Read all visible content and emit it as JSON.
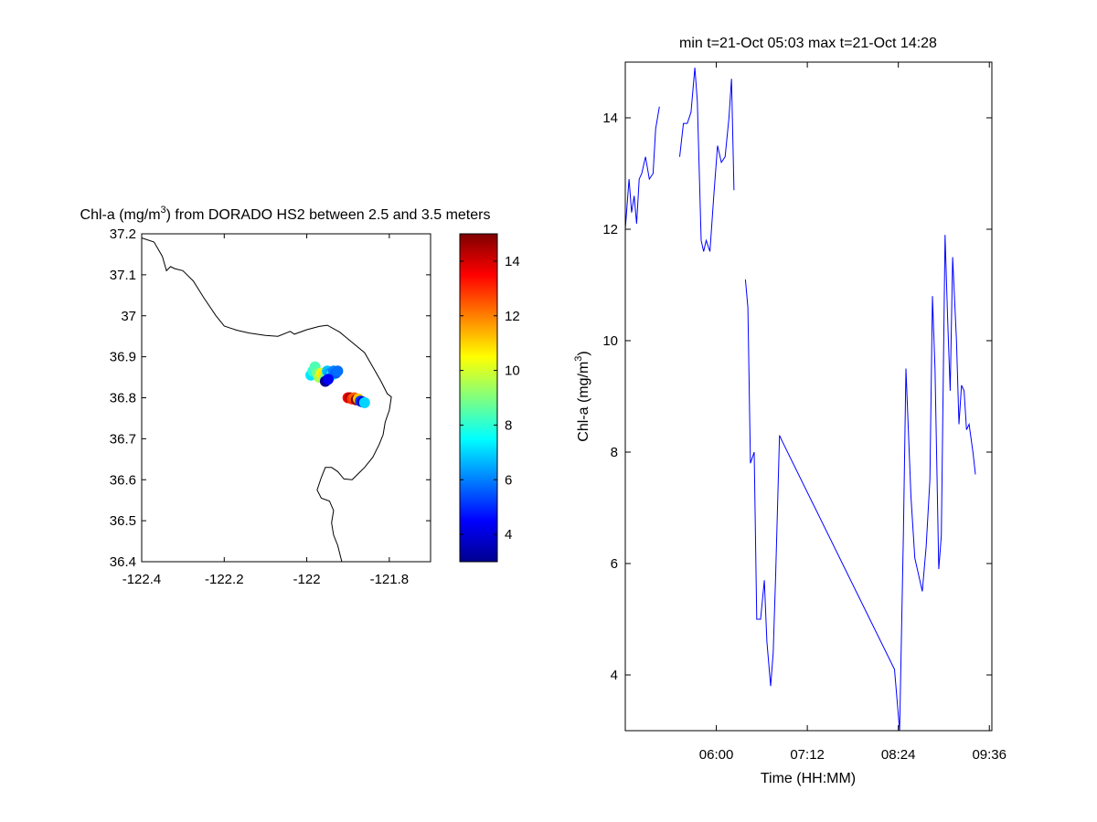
{
  "chart_data": [
    {
      "type": "scatter",
      "title": "Chl-a (mg/m3) from DORADO HS2 between 2.5 and 3.5 meters",
      "title_parts": {
        "pre": "Chl-a (mg/m",
        "sup": "3",
        "post": ") from DORADO HS2 between 2.5 and 3.5 meters"
      },
      "xlabel": "",
      "ylabel": "",
      "xlim": [
        -122.4,
        -121.7
      ],
      "ylim": [
        36.4,
        37.2
      ],
      "x_ticks": [
        -122.4,
        -122.2,
        -122,
        -121.8
      ],
      "x_tick_labels": [
        "-122.4",
        "-122.2",
        "-122",
        "-121.8"
      ],
      "y_ticks": [
        36.4,
        36.5,
        36.6,
        36.7,
        36.8,
        36.9,
        37.0,
        37.1,
        37.2
      ],
      "y_tick_labels": [
        "36.4",
        "36.5",
        "36.6",
        "36.7",
        "36.8",
        "36.9",
        "37",
        "37.1",
        "37.2"
      ],
      "coastline": [
        [
          -122.4,
          37.19
        ],
        [
          -122.37,
          37.18
        ],
        [
          -122.35,
          37.145
        ],
        [
          -122.34,
          37.11
        ],
        [
          -122.33,
          37.12
        ],
        [
          -122.32,
          37.115
        ],
        [
          -122.3,
          37.11
        ],
        [
          -122.275,
          37.085
        ],
        [
          -122.25,
          37.045
        ],
        [
          -122.22,
          37.0
        ],
        [
          -122.2,
          36.975
        ],
        [
          -122.17,
          36.965
        ],
        [
          -122.14,
          36.958
        ],
        [
          -122.1,
          36.952
        ],
        [
          -122.07,
          36.95
        ],
        [
          -122.04,
          36.962
        ],
        [
          -122.03,
          36.955
        ],
        [
          -122.0,
          36.966
        ],
        [
          -121.97,
          36.974
        ],
        [
          -121.95,
          36.977
        ],
        [
          -121.92,
          36.96
        ],
        [
          -121.89,
          36.935
        ],
        [
          -121.86,
          36.91
        ],
        [
          -121.84,
          36.875
        ],
        [
          -121.82,
          36.84
        ],
        [
          -121.805,
          36.81
        ],
        [
          -121.795,
          36.802
        ],
        [
          -121.8,
          36.77
        ],
        [
          -121.81,
          36.74
        ],
        [
          -121.815,
          36.71
        ],
        [
          -121.825,
          36.685
        ],
        [
          -121.84,
          36.655
        ],
        [
          -121.86,
          36.63
        ],
        [
          -121.875,
          36.615
        ],
        [
          -121.89,
          36.6
        ],
        [
          -121.91,
          36.602
        ],
        [
          -121.925,
          36.62
        ],
        [
          -121.94,
          36.63
        ],
        [
          -121.955,
          36.63
        ],
        [
          -121.965,
          36.605
        ],
        [
          -121.975,
          36.575
        ],
        [
          -121.965,
          36.555
        ],
        [
          -121.945,
          36.548
        ],
        [
          -121.935,
          36.525
        ],
        [
          -121.94,
          36.495
        ],
        [
          -121.935,
          36.465
        ],
        [
          -121.925,
          36.44
        ],
        [
          -121.915,
          36.4
        ]
      ],
      "points": [
        {
          "lon": -121.99,
          "lat": 36.855,
          "v": 7.2
        },
        {
          "lon": -121.985,
          "lat": 36.865,
          "v": 8.0
        },
        {
          "lon": -121.98,
          "lat": 36.875,
          "v": 8.4
        },
        {
          "lon": -121.975,
          "lat": 36.86,
          "v": 8.8
        },
        {
          "lon": -121.97,
          "lat": 36.85,
          "v": 9.5
        },
        {
          "lon": -121.965,
          "lat": 36.86,
          "v": 10.2
        },
        {
          "lon": -121.96,
          "lat": 36.855,
          "v": 10.8
        },
        {
          "lon": -121.955,
          "lat": 36.85,
          "v": 9.0
        },
        {
          "lon": -121.95,
          "lat": 36.865,
          "v": 6.8
        },
        {
          "lon": -121.945,
          "lat": 36.86,
          "v": 6.4
        },
        {
          "lon": -121.94,
          "lat": 36.855,
          "v": 7.4
        },
        {
          "lon": -121.935,
          "lat": 36.865,
          "v": 6.0
        },
        {
          "lon": -121.93,
          "lat": 36.86,
          "v": 5.6
        },
        {
          "lon": -121.925,
          "lat": 36.865,
          "v": 5.8
        },
        {
          "lon": -121.955,
          "lat": 36.84,
          "v": 3.2
        },
        {
          "lon": -121.948,
          "lat": 36.845,
          "v": 4.4
        },
        {
          "lon": -121.9,
          "lat": 36.8,
          "v": 13.5
        },
        {
          "lon": -121.895,
          "lat": 36.8,
          "v": 14.5
        },
        {
          "lon": -121.89,
          "lat": 36.797,
          "v": 13.0
        },
        {
          "lon": -121.885,
          "lat": 36.8,
          "v": 12.4
        },
        {
          "lon": -121.88,
          "lat": 36.795,
          "v": 14.8
        },
        {
          "lon": -121.875,
          "lat": 36.797,
          "v": 11.2
        },
        {
          "lon": -121.87,
          "lat": 36.792,
          "v": 5.2
        },
        {
          "lon": -121.865,
          "lat": 36.79,
          "v": 4.0
        },
        {
          "lon": -121.86,
          "lat": 36.788,
          "v": 7.0
        }
      ]
    },
    {
      "type": "colorbar",
      "range": [
        3,
        15
      ],
      "ticks": [
        4,
        6,
        8,
        10,
        12,
        14
      ],
      "tick_labels": [
        "4",
        "6",
        "8",
        "10",
        "12",
        "14"
      ],
      "colormap": "jet"
    },
    {
      "type": "line",
      "title": "min t=21-Oct 05:03 max t=21-Oct 14:28",
      "xlabel": "Time (HH:MM)",
      "ylabel_parts": {
        "pre": "Chl-a (mg/m",
        "sup": "3",
        "post": ")"
      },
      "xlim": [
        0.0,
        290.0
      ],
      "ylim": [
        3,
        15
      ],
      "x_ticks": [
        72,
        144,
        216,
        288
      ],
      "x_tick_labels": [
        "06:00",
        "07:12",
        "08:24",
        "09:36"
      ],
      "y_ticks": [
        4,
        6,
        8,
        10,
        12,
        14
      ],
      "y_tick_labels": [
        "4",
        "6",
        "8",
        "10",
        "12",
        "14"
      ],
      "line_color": "#0000ff",
      "series": [
        {
          "segments": [
            [
              [
                0,
                12.0
              ],
              [
                3,
                12.9
              ],
              [
                5,
                12.3
              ],
              [
                7,
                12.6
              ],
              [
                9,
                12.1
              ],
              [
                11,
                12.9
              ],
              [
                13,
                13.0
              ],
              [
                16,
                13.3
              ],
              [
                19,
                12.9
              ],
              [
                22,
                13.0
              ],
              [
                24,
                13.8
              ],
              [
                27,
                14.2
              ]
            ],
            [
              [
                43,
                13.3
              ],
              [
                46,
                13.9
              ],
              [
                49,
                13.9
              ],
              [
                52,
                14.1
              ],
              [
                55,
                14.9
              ],
              [
                57,
                14.3
              ],
              [
                60,
                11.8
              ],
              [
                62,
                11.6
              ],
              [
                64,
                11.8
              ],
              [
                67,
                11.6
              ],
              [
                70,
                12.6
              ],
              [
                73,
                13.5
              ],
              [
                76,
                13.2
              ],
              [
                79,
                13.3
              ],
              [
                82,
                14.0
              ],
              [
                84,
                14.7
              ],
              [
                86,
                12.7
              ]
            ],
            [
              [
                95,
                11.1
              ],
              [
                97,
                10.6
              ],
              [
                99,
                7.8
              ],
              [
                102,
                8.0
              ],
              [
                104,
                5.0
              ],
              [
                107,
                5.0
              ],
              [
                110,
                5.7
              ],
              [
                112,
                4.6
              ],
              [
                115,
                3.8
              ],
              [
                117,
                4.4
              ],
              [
                119,
                5.8
              ],
              [
                122,
                8.3
              ],
              [
                124,
                8.2
              ],
              [
                213,
                4.1
              ],
              [
                217,
                3.0
              ],
              [
                220,
                6.5
              ],
              [
                222,
                9.5
              ],
              [
                226,
                7.2
              ],
              [
                229,
                6.1
              ],
              [
                232,
                5.8
              ],
              [
                235,
                5.5
              ],
              [
                238,
                6.3
              ],
              [
                241,
                7.5
              ],
              [
                243,
                10.8
              ],
              [
                245,
                9.5
              ],
              [
                248,
                5.9
              ],
              [
                250,
                6.5
              ],
              [
                253,
                11.9
              ],
              [
                255,
                10.4
              ],
              [
                257,
                9.1
              ],
              [
                259,
                11.5
              ],
              [
                262,
                10.0
              ],
              [
                264,
                8.5
              ],
              [
                266,
                9.2
              ],
              [
                268,
                9.1
              ],
              [
                270,
                8.4
              ],
              [
                272,
                8.5
              ],
              [
                275,
                8.0
              ],
              [
                277,
                7.6
              ]
            ]
          ]
        }
      ]
    }
  ]
}
